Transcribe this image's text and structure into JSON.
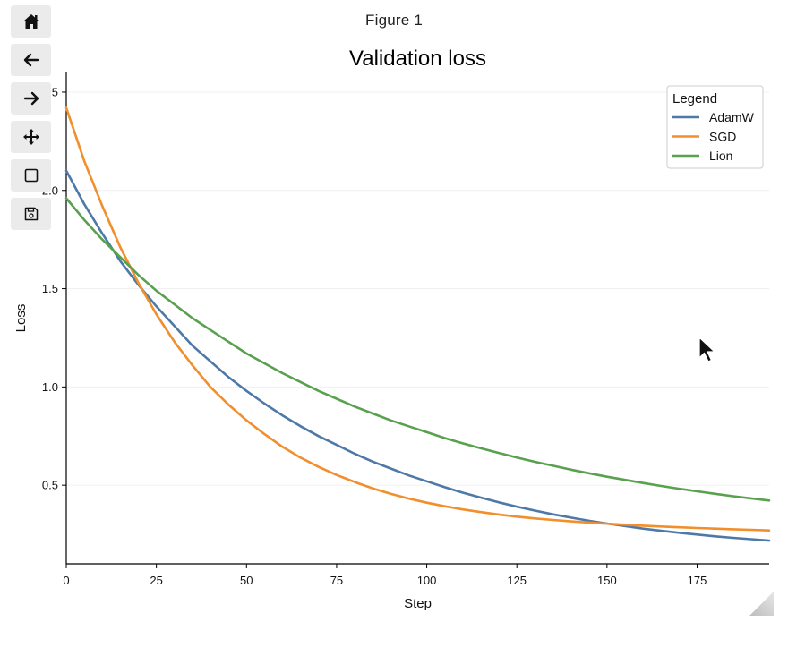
{
  "window": {
    "figure_title": "Figure 1"
  },
  "toolbar": {
    "buttons": [
      {
        "icon": "home-icon"
      },
      {
        "icon": "back-arrow-icon"
      },
      {
        "icon": "forward-arrow-icon"
      },
      {
        "icon": "pan-move-icon"
      },
      {
        "icon": "zoom-rectangle-icon"
      },
      {
        "icon": "save-disk-icon"
      }
    ]
  },
  "chart_data": {
    "type": "line",
    "title": "Validation loss",
    "xlabel": "Step",
    "ylabel": "Loss",
    "xlim": [
      0,
      195
    ],
    "ylim": [
      0.1,
      2.6
    ],
    "xticks": [
      0,
      25,
      50,
      75,
      100,
      125,
      150,
      175
    ],
    "yticks": [
      0.5,
      1.0,
      1.5,
      2.0,
      2.5
    ],
    "ytick_labels": [
      "0.5",
      "1.0",
      "1.5",
      "2.0",
      "2.5"
    ],
    "grid": "horizontal",
    "legend": {
      "title": "Legend",
      "position": "top-right"
    },
    "x": [
      0,
      5,
      10,
      15,
      20,
      25,
      30,
      35,
      40,
      45,
      50,
      55,
      60,
      65,
      70,
      75,
      80,
      85,
      90,
      95,
      100,
      105,
      110,
      115,
      120,
      125,
      130,
      135,
      140,
      145,
      150,
      155,
      160,
      165,
      170,
      175,
      180,
      185,
      190,
      195
    ],
    "series": [
      {
        "name": "AdamW",
        "color": "#4e79a7",
        "values": [
          2.1,
          1.93,
          1.78,
          1.64,
          1.52,
          1.41,
          1.31,
          1.21,
          1.13,
          1.05,
          0.98,
          0.915,
          0.855,
          0.8,
          0.75,
          0.705,
          0.66,
          0.62,
          0.585,
          0.55,
          0.52,
          0.49,
          0.462,
          0.437,
          0.413,
          0.391,
          0.371,
          0.352,
          0.335,
          0.319,
          0.305,
          0.292,
          0.279,
          0.268,
          0.258,
          0.249,
          0.24,
          0.232,
          0.225,
          0.218
        ]
      },
      {
        "name": "SGD",
        "color": "#f28e2b",
        "values": [
          2.42,
          2.15,
          1.92,
          1.71,
          1.53,
          1.37,
          1.23,
          1.11,
          1.0,
          0.91,
          0.83,
          0.76,
          0.695,
          0.64,
          0.593,
          0.552,
          0.516,
          0.484,
          0.456,
          0.432,
          0.411,
          0.393,
          0.377,
          0.363,
          0.351,
          0.34,
          0.331,
          0.323,
          0.316,
          0.31,
          0.304,
          0.299,
          0.294,
          0.29,
          0.286,
          0.282,
          0.279,
          0.276,
          0.273,
          0.27
        ]
      },
      {
        "name": "Lion",
        "color": "#59a14f",
        "values": [
          1.96,
          1.85,
          1.75,
          1.66,
          1.57,
          1.49,
          1.42,
          1.35,
          1.29,
          1.23,
          1.17,
          1.12,
          1.07,
          1.025,
          0.98,
          0.94,
          0.9,
          0.865,
          0.83,
          0.8,
          0.77,
          0.74,
          0.713,
          0.688,
          0.664,
          0.641,
          0.619,
          0.599,
          0.579,
          0.561,
          0.543,
          0.527,
          0.511,
          0.496,
          0.482,
          0.469,
          0.456,
          0.444,
          0.433,
          0.422
        ]
      }
    ]
  }
}
